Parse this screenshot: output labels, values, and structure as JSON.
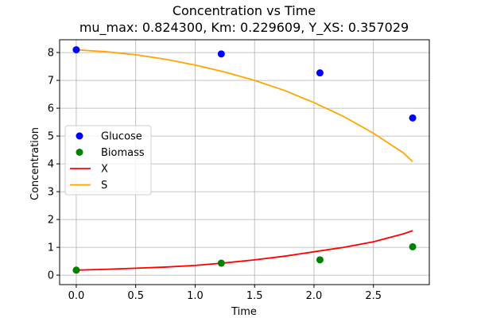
{
  "chart_data": {
    "type": "scatter",
    "title": "Concentration vs Time",
    "subtitle": "mu_max: 0.824300, Km: 0.229609, Y_XS: 0.357029",
    "xlabel": "Time",
    "ylabel": "Concentration",
    "xlim": [
      -0.14,
      2.97
    ],
    "ylim": [
      -0.34,
      8.46
    ],
    "xticks": [
      0.0,
      0.5,
      1.0,
      1.5,
      2.0,
      2.5
    ],
    "xtick_labels": [
      "0.0",
      "0.5",
      "1.0",
      "1.5",
      "2.0",
      "2.5"
    ],
    "yticks": [
      0,
      1,
      2,
      3,
      4,
      5,
      6,
      7,
      8
    ],
    "ytick_labels": [
      "0",
      "1",
      "2",
      "3",
      "4",
      "5",
      "6",
      "7",
      "8"
    ],
    "grid": true,
    "legend_position": "center-left",
    "series": [
      {
        "name": "Glucose",
        "kind": "scatter",
        "color": "#0000ff",
        "x": [
          0.0,
          1.22,
          2.05,
          2.83
        ],
        "y": [
          8.1,
          7.95,
          7.27,
          5.65
        ]
      },
      {
        "name": "Biomass",
        "kind": "scatter",
        "color": "#008000",
        "x": [
          0.0,
          1.22,
          2.05,
          2.83
        ],
        "y": [
          0.18,
          0.43,
          0.55,
          1.02
        ]
      },
      {
        "name": "X",
        "kind": "line",
        "color": "#ff0000",
        "x": [
          0.0,
          0.25,
          0.5,
          0.75,
          1.0,
          1.25,
          1.5,
          1.75,
          2.0,
          2.25,
          2.5,
          2.75,
          2.83
        ],
        "y": [
          0.18,
          0.21,
          0.25,
          0.29,
          0.35,
          0.44,
          0.55,
          0.68,
          0.84,
          1.0,
          1.2,
          1.48,
          1.6
        ]
      },
      {
        "name": "S",
        "kind": "line",
        "color": "#ffa500",
        "x": [
          0.0,
          0.25,
          0.5,
          0.75,
          1.0,
          1.25,
          1.5,
          1.75,
          2.0,
          2.25,
          2.5,
          2.75,
          2.83
        ],
        "y": [
          8.1,
          8.03,
          7.92,
          7.76,
          7.55,
          7.3,
          7.0,
          6.64,
          6.2,
          5.7,
          5.1,
          4.4,
          4.08
        ]
      }
    ]
  }
}
